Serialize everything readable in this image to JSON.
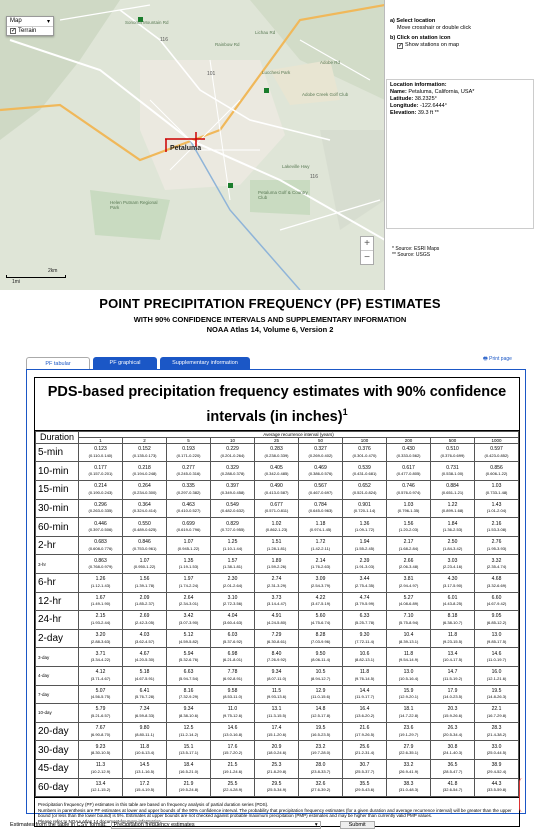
{
  "map": {
    "type_label": "Map",
    "terrain_label": "Terrain",
    "terrain_checked": true,
    "city": "Petaluma",
    "scale_km": "2km",
    "scale_mi": "1mi",
    "place_labels": [
      {
        "name": "Sonoma Mountain Rd",
        "left": 125,
        "top": 20
      },
      {
        "name": "Rainbow Rd",
        "left": 215,
        "top": 42
      },
      {
        "name": "Lichau Rd",
        "left": 255,
        "top": 30
      },
      {
        "name": "Lucchesi Park",
        "left": 262,
        "top": 70
      },
      {
        "name": "Adobe Creek Golf Club",
        "left": 302,
        "top": 92
      },
      {
        "name": "Helen Putnam Regional Park",
        "left": 110,
        "top": 200
      },
      {
        "name": "Petaluma Golf & Country Club",
        "left": 258,
        "top": 190
      },
      {
        "name": "Adobe Rd",
        "left": 320,
        "top": 60
      },
      {
        "name": "Lakeville Hwy",
        "left": 282,
        "top": 164
      }
    ],
    "zoom_in": "+",
    "zoom_out": "−"
  },
  "side": {
    "step_a": "a) Select location",
    "step_a_hint": "Move crosshair or double click",
    "step_b": "b) Click on station icon",
    "step_b_option": "Show stations on map",
    "info_heading": "Location information:",
    "name_label": "Name:",
    "name_value": "Petaluma, California, USA*",
    "lat_label": "Latitude:",
    "lat_value": "38.2325°",
    "lon_label": "Longitude:",
    "lon_value": "-122.6444°",
    "elev_label": "Elevation:",
    "elev_value": "39.3 ft **",
    "source1": "* Source: ESRI Maps",
    "source2": "** Source: USGS"
  },
  "titles": {
    "main": "POINT PRECIPITATION FREQUENCY (PF) ESTIMATES",
    "sub": "WITH 90% CONFIDENCE INTERVALS AND SUPPLEMENTARY INFORMATION",
    "atlas": "NOAA Atlas 14, Volume 6, Version 2"
  },
  "tabs": [
    "PF tabular",
    "PF graphical",
    "Supplementary information"
  ],
  "print_label": "Print page",
  "table": {
    "heading": "PDS-based precipitation frequency estimates with 90% confidence intervals (in inches)",
    "heading_sup": "1",
    "duration_label": "Duration",
    "interval_label": "Average recurrence interval (years)",
    "intervals": [
      "1",
      "2",
      "5",
      "10",
      "25",
      "50",
      "100",
      "200",
      "500",
      "1000"
    ],
    "rows": [
      {
        "d": "5-min",
        "big": true,
        "v": [
          "0.123",
          "0.152",
          "0.193",
          "0.229",
          "0.283",
          "0.327",
          "0.376",
          "0.430",
          "0.510",
          "0.597"
        ],
        "r": [
          "(0.110-0.140)",
          "(0.135-0.173)",
          "(0.171-0.220)",
          "(0.201-0.264)",
          "(0.238-0.339)",
          "(0.269-0.402)",
          "(0.301-0.470)",
          "(0.333-0.562)",
          "(0.376-0.699)",
          "(0.423-0.852)"
        ]
      },
      {
        "d": "10-min",
        "big": true,
        "v": [
          "0.177",
          "0.218",
          "0.277",
          "0.329",
          "0.405",
          "0.469",
          "0.539",
          "0.617",
          "0.731",
          "0.856"
        ],
        "r": [
          "(0.157-0.201)",
          "(0.194-0.248)",
          "(0.245-0.316)",
          "(0.288-0.378)",
          "(0.342-0.485)",
          "(0.386-0.576)",
          "(0.431-0.681)",
          "(0.477-0.805)",
          "(0.538-1.00)",
          "(0.606-1.22)"
        ]
      },
      {
        "d": "15-min",
        "big": true,
        "v": [
          "0.214",
          "0.264",
          "0.335",
          "0.397",
          "0.490",
          "0.567",
          "0.652",
          "0.746",
          "0.884",
          "1.03"
        ],
        "r": [
          "(0.190-0.243)",
          "(0.234-0.300)",
          "(0.297-0.382)",
          "(0.349-0.458)",
          "(0.413-0.587)",
          "(0.467-0.697)",
          "(0.521-0.824)",
          "(0.576-0.974)",
          "(0.651-1.21)",
          "(0.733-1.48)"
        ]
      },
      {
        "d": "30-min",
        "big": true,
        "v": [
          "0.296",
          "0.364",
          "0.463",
          "0.549",
          "0.677",
          "0.784",
          "0.901",
          "1.03",
          "1.22",
          "1.43"
        ],
        "r": [
          "(0.263-0.335)",
          "(0.324-0.414)",
          "(0.410-0.527)",
          "(0.482-0.632)",
          "(0.571-0.811)",
          "(0.645-0.963)",
          "(0.720-1.14)",
          "(0.796-1.35)",
          "(0.899-1.68)",
          "(1.01-2.04)"
        ]
      },
      {
        "d": "60-min",
        "big": true,
        "v": [
          "0.446",
          "0.550",
          "0.699",
          "0.829",
          "1.02",
          "1.18",
          "1.36",
          "1.56",
          "1.84",
          "2.16"
        ],
        "r": [
          "(0.397-0.506)",
          "(0.489-0.625)",
          "(0.619-0.796)",
          "(0.727-0.955)",
          "(0.862-1.23)",
          "(0.974-1.45)",
          "(1.09-1.72)",
          "(1.20-2.03)",
          "(1.36-2.53)",
          "(1.53-3.08)"
        ]
      },
      {
        "d": "2-hr",
        "big": true,
        "v": [
          "0.683",
          "0.846",
          "1.07",
          "1.25",
          "1.51",
          "1.72",
          "1.94",
          "2.17",
          "2.50",
          "2.76"
        ],
        "r": [
          "(0.608-0.776)",
          "(0.753-0.961)",
          "(0.945-1.22)",
          "(1.10-1.44)",
          "(1.28-1.81)",
          "(1.42-2.11)",
          "(1.55-2.45)",
          "(1.68-2.84)",
          "(1.84-3.42)",
          "(1.95-3.93)"
        ]
      },
      {
        "d": "3-hr",
        "big": false,
        "v": [
          "0.863",
          "1.07",
          "1.35",
          "1.57",
          "1.89",
          "2.14",
          "2.39",
          "2.66",
          "3.03",
          "3.32"
        ],
        "r": [
          "(0.768-0.979)",
          "(0.950-1.22)",
          "(1.19-1.53)",
          "(1.38-1.81)",
          "(1.59-2.26)",
          "(1.76-2.63)",
          "(1.91-3.03)",
          "(2.06-3.48)",
          "(2.23-4.16)",
          "(2.35-4.74)"
        ]
      },
      {
        "d": "6-hr",
        "big": true,
        "v": [
          "1.26",
          "1.56",
          "1.97",
          "2.30",
          "2.74",
          "3.09",
          "3.44",
          "3.81",
          "4.30",
          "4.68"
        ],
        "r": [
          "(1.12-1.43)",
          "(1.39-1.78)",
          "(1.74-2.24)",
          "(2.01-2.64)",
          "(2.31-3.29)",
          "(2.54-3.79)",
          "(2.75-4.35)",
          "(2.94-4.97)",
          "(3.17-5.90)",
          "(3.32-6.69)"
        ]
      },
      {
        "d": "12-hr",
        "big": true,
        "v": [
          "1.67",
          "2.09",
          "2.64",
          "3.10",
          "3.73",
          "4.22",
          "4.74",
          "5.27",
          "6.01",
          "6.60"
        ],
        "r": [
          "(1.49-1.90)",
          "(1.85-2.37)",
          "(2.34-3.01)",
          "(2.72-3.56)",
          "(3.14-4.47)",
          "(3.47-5.19)",
          "(3.79-5.99)",
          "(4.08-6.89)",
          "(4.43-8.25)",
          "(4.67-9.42)"
        ]
      },
      {
        "d": "24-hr",
        "big": true,
        "v": [
          "2.15",
          "2.69",
          "3.42",
          "4.04",
          "4.91",
          "5.60",
          "6.33",
          "7.10",
          "8.18",
          "9.05"
        ],
        "r": [
          "(1.93-2.44)",
          "(2.42-3.05)",
          "(3.07-3.90)",
          "(3.60-4.63)",
          "(4.24-5.80)",
          "(4.75-6.74)",
          "(5.25-7.78)",
          "(5.75-8.94)",
          "(6.38-10.7)",
          "(6.85-12.2)"
        ]
      },
      {
        "d": "2-day",
        "big": true,
        "v": [
          "3.20",
          "4.03",
          "5.12",
          "6.03",
          "7.29",
          "8.28",
          "9.30",
          "10.4",
          "11.8",
          "13.0"
        ],
        "r": [
          "(2.88-3.63)",
          "(3.62-4.57)",
          "(4.59-5.82)",
          "(5.37-6.92)",
          "(6.30-8.61)",
          "(7.03-9.96)",
          "(7.72-11.4)",
          "(8.39-13.1)",
          "(9.23-15.5)",
          "(9.85-17.5)"
        ]
      },
      {
        "d": "3-day",
        "big": false,
        "v": [
          "3.71",
          "4.67",
          "5.94",
          "6.98",
          "8.40",
          "9.50",
          "10.6",
          "11.8",
          "13.4",
          "14.6"
        ],
        "r": [
          "(3.34-4.22)",
          "(4.20-5.30)",
          "(5.32-6.76)",
          "(6.21-8.01)",
          "(7.26-9.92)",
          "(8.06-11.4)",
          "(8.82-13.1)",
          "(9.54-14.9)",
          "(10.4-17.5)",
          "(11.0-19.7)"
        ]
      },
      {
        "d": "4-day",
        "big": false,
        "v": [
          "4.12",
          "5.18",
          "6.63",
          "7.78",
          "9.34",
          "10.5",
          "11.8",
          "13.0",
          "14.7",
          "16.0"
        ],
        "r": [
          "(3.71-4.67)",
          "(4.67-5.91)",
          "(5.94-7.54)",
          "(6.92-8.91)",
          "(8.07-11.0)",
          "(8.94-12.7)",
          "(9.76-14.5)",
          "(10.5-16.4)",
          "(11.5-19.2)",
          "(12.1-21.6)"
        ]
      },
      {
        "d": "7-day",
        "big": false,
        "v": [
          "5.07",
          "6.41",
          "8.16",
          "9.58",
          "11.5",
          "12.9",
          "14.4",
          "15.9",
          "17.9",
          "19.5"
        ],
        "r": [
          "(4.56-5.75)",
          "(5.76-7.28)",
          "(7.32-9.29)",
          "(8.53-11.0)",
          "(9.93-13.6)",
          "(11.0-15.6)",
          "(11.9-17.7)",
          "(12.9-20.1)",
          "(14.0-23.5)",
          "(14.8-26.3)"
        ]
      },
      {
        "d": "10-day",
        "big": false,
        "v": [
          "5.79",
          "7.34",
          "9.34",
          "11.0",
          "13.1",
          "14.8",
          "16.4",
          "18.1",
          "20.3",
          "22.1"
        ],
        "r": [
          "(5.21-6.57)",
          "(6.59-8.33)",
          "(8.38-10.6)",
          "(9.75-12.6)",
          "(11.3-15.5)",
          "(12.5-17.8)",
          "(13.6-20.2)",
          "(14.7-22.8)",
          "(15.9-26.6)",
          "(16.7-29.8)"
        ]
      },
      {
        "d": "20-day",
        "big": true,
        "v": [
          "7.67",
          "9.80",
          "12.5",
          "14.6",
          "17.4",
          "19.5",
          "21.6",
          "23.6",
          "26.3",
          "28.3"
        ],
        "r": [
          "(6.90-8.70)",
          "(8.80-11.1)",
          "(11.2-14.2)",
          "(13.0-16.8)",
          "(15.1-20.6)",
          "(16.5-23.5)",
          "(17.9-26.5)",
          "(19.1-29.7)",
          "(20.5-34.4)",
          "(21.4-38.2)"
        ]
      },
      {
        "d": "30-day",
        "big": true,
        "v": [
          "9.23",
          "11.8",
          "15.1",
          "17.6",
          "20.9",
          "23.2",
          "25.6",
          "27.9",
          "30.8",
          "33.0"
        ],
        "r": [
          "(8.30-10.5)",
          "(10.6-13.4)",
          "(13.5-17.1)",
          "(15.7-20.2)",
          "(18.0-24.6)",
          "(19.7-28.0)",
          "(21.2-31.4)",
          "(22.6-35.1)",
          "(24.1-40.3)",
          "(25.0-44.5)"
        ]
      },
      {
        "d": "45-day",
        "big": true,
        "v": [
          "11.3",
          "14.5",
          "18.4",
          "21.5",
          "25.3",
          "28.0",
          "30.7",
          "33.2",
          "36.5",
          "38.9"
        ],
        "r": [
          "(10.2-12.9)",
          "(13.1-16.5)",
          "(16.5-21.0)",
          "(19.1-24.6)",
          "(21.8-29.8)",
          "(23.8-33.7)",
          "(25.5-37.7)",
          "(26.9-41.9)",
          "(28.5-47.7)",
          "(29.4-52.4)"
        ]
      },
      {
        "d": "60-day",
        "big": true,
        "v": [
          "13.4",
          "17.2",
          "21.9",
          "25.5",
          "29.5",
          "32.6",
          "35.5",
          "38.3",
          "41.8",
          "44.3"
        ],
        "r": [
          "(12.1-15.2)",
          "(15.4-19.5)",
          "(19.5-24.8)",
          "(22.4-28.9)",
          "(25.5-34.9)",
          "(27.6-39.2)",
          "(29.5-43.6)",
          "(31.0-48.3)",
          "(32.6-54.7)",
          "(33.5-59.8)"
        ]
      }
    ],
    "footnote1": "Precipitation frequency (PF) estimates in this table are based on frequency analysis of partial duration series (PDS).",
    "footnote2": "Numbers in parenthesis are PF estimates at lower and upper bounds of the 90% confidence interval. The probability that precipitation frequency estimates (for a given duration and average recurrence interval) will be greater than the upper bound (or less than the lower bound) is 5%. Estimates at upper bounds are not checked against probable maximum precipitation (PMP) estimates and may be higher than currently valid PMP values.",
    "footnote3": "Please refer to NOAA Atlas 14 document for more information."
  },
  "bottom": {
    "label": "Estimates from the table in CSV format:",
    "select_value": "Precipitation frequency estimates",
    "submit": "Submit"
  }
}
